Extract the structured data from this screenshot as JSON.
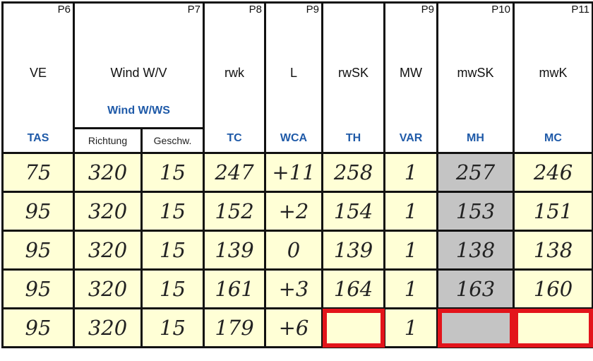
{
  "columns": [
    {
      "page": "P6",
      "name": "VE",
      "en": "TAS"
    },
    {
      "page": "P7",
      "name": "Wind W/V",
      "en": "Wind W/WS",
      "sub": [
        "Richtung",
        "Geschw."
      ]
    },
    {
      "page": "P8",
      "name": "rwk",
      "en": "TC"
    },
    {
      "page": "P9",
      "name": "L",
      "en": "WCA"
    },
    {
      "page": "",
      "name": "rwSK",
      "en": "TH"
    },
    {
      "page": "P9",
      "name": "MW",
      "en": "VAR"
    },
    {
      "page": "P10",
      "name": "mwSK",
      "en": "MH"
    },
    {
      "page": "P11",
      "name": "mwK",
      "en": "MC"
    }
  ],
  "rows": [
    [
      "75",
      "320",
      "15",
      "247",
      "+11",
      "258",
      "1",
      "257",
      "246"
    ],
    [
      "95",
      "320",
      "15",
      "152",
      "+2",
      "154",
      "1",
      "153",
      "151"
    ],
    [
      "95",
      "320",
      "15",
      "139",
      "0",
      "139",
      "1",
      "138",
      "138"
    ],
    [
      "95",
      "320",
      "15",
      "161",
      "+3",
      "164",
      "1",
      "163",
      "160"
    ],
    [
      "95",
      "320",
      "15",
      "179",
      "+6",
      "",
      "1",
      "",
      ""
    ]
  ],
  "colors": {
    "cell_bg": "#ffffd6",
    "highlight_column": "#c4c4c4",
    "english_label": "#1f5aa8",
    "empty_marker": "#e3141b"
  }
}
